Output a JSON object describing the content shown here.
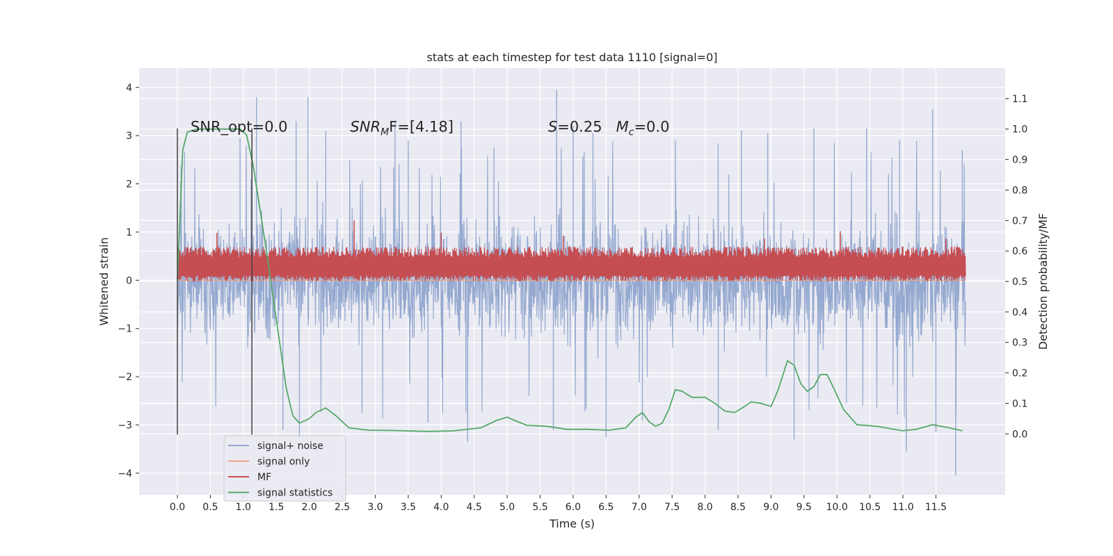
{
  "chart_data": {
    "type": "line",
    "title": "stats at each timestep for test data 1110 [signal=0]",
    "xlabel": "Time (s)",
    "ylabel": "Whitened strain",
    "y2label": "Detection probability/MF",
    "xlim": [
      -0.58,
      12.55
    ],
    "ylim": [
      -4.45,
      4.4
    ],
    "y2lim": [
      -0.2,
      1.2
    ],
    "x_ticks": [
      0.0,
      0.5,
      1.0,
      1.5,
      2.0,
      2.5,
      3.0,
      3.5,
      4.0,
      4.5,
      5.0,
      5.5,
      6.0,
      6.5,
      7.0,
      7.5,
      8.0,
      8.5,
      9.0,
      9.5,
      10.0,
      10.5,
      11.0,
      11.5
    ],
    "x_tick_labels": [
      "0.0",
      "0.5",
      "1.0",
      "1.5",
      "2.0",
      "2.5",
      "3.0",
      "3.5",
      "4.0",
      "4.5",
      "5.0",
      "5.5",
      "6.0",
      "6.5",
      "7.0",
      "7.5",
      "8.0",
      "8.5",
      "9.0",
      "9.5",
      "10.0",
      "10.5",
      "11.0",
      "11.5"
    ],
    "y_ticks": [
      -4,
      -3,
      -2,
      -1,
      0,
      1,
      2,
      3,
      4
    ],
    "y_tick_labels": [
      "−4",
      "−3",
      "−2",
      "−1",
      "0",
      "1",
      "2",
      "3",
      "4"
    ],
    "y2_ticks": [
      0.0,
      0.1,
      0.2,
      0.3,
      0.4,
      0.5,
      0.6,
      0.7,
      0.8,
      0.9,
      1.0,
      1.1
    ],
    "y2_tick_labels": [
      "0.0",
      "0.1",
      "0.2",
      "0.3",
      "0.4",
      "0.5",
      "0.6",
      "0.7",
      "0.8",
      "0.9",
      "1.0",
      "1.1"
    ],
    "grid": true,
    "legend_placement": "lower-left",
    "annotations": [
      {
        "text": "SNR_opt=0.0",
        "x": 0.2,
        "y": 3.2
      },
      {
        "text": "SNR",
        "sub": "M",
        "rest": "F=[4.18]",
        "italic": true,
        "x": 2.62,
        "y": 3.2
      },
      {
        "text": "S",
        "rest": "=0.25   ",
        "text2": "M",
        "sub2": "c",
        "rest2": "=0.0",
        "italic": true,
        "x": 5.62,
        "y": 3.2
      }
    ],
    "markers": [
      {
        "x": 0.0,
        "y": [
          -3.2,
          3.15
        ],
        "color": "#404040"
      },
      {
        "x": 1.13,
        "y": [
          -3.2,
          3.15
        ],
        "color": "#404040"
      }
    ],
    "series": [
      {
        "name": "signal+ noise",
        "color": "#95a9d0",
        "kind": "noise",
        "x_range": [
          0.0,
          11.95
        ],
        "typical_amplitude": 1.25,
        "peaks": [
          [
            0.05,
            2.05
          ],
          [
            0.95,
            2.95
          ],
          [
            1.2,
            3.8
          ],
          [
            1.6,
            -3.1
          ],
          [
            1.8,
            3.3
          ],
          [
            1.85,
            -3.25
          ],
          [
            1.98,
            3.8
          ],
          [
            2.25,
            3.1
          ],
          [
            3.5,
            2.9
          ],
          [
            3.3,
            3.3
          ],
          [
            4.3,
            3.3
          ],
          [
            4.4,
            -3.35
          ],
          [
            4.8,
            2.75
          ],
          [
            5.75,
            3.95
          ],
          [
            5.7,
            -3.1
          ],
          [
            6.5,
            -3.25
          ],
          [
            6.3,
            3.05
          ],
          [
            7.55,
            2.9
          ],
          [
            8.55,
            3.1
          ],
          [
            8.2,
            -3.1
          ],
          [
            9.35,
            -3.3
          ],
          [
            9.65,
            3.15
          ],
          [
            10.45,
            3.15
          ],
          [
            11.05,
            -3.55
          ],
          [
            11.45,
            3.55
          ],
          [
            11.5,
            -3.15
          ],
          [
            11.8,
            -4.05
          ],
          [
            11.9,
            2.7
          ],
          [
            7.05,
            -2.9
          ],
          [
            3.8,
            -2.95
          ],
          [
            6.0,
            3.2
          ],
          [
            10.95,
            2.9
          ],
          [
            2.8,
            -2.75
          ],
          [
            8.95,
            3.05
          ]
        ]
      },
      {
        "name": "signal only",
        "color": "#e9a68a",
        "kind": "flat",
        "x_range": [
          0.0,
          11.95
        ],
        "value": 0.0
      },
      {
        "name": "MF",
        "color": "#c44e52",
        "kind": "band",
        "x_range": [
          0.0,
          11.95
        ],
        "y2_range": [
          0.5,
          0.6
        ],
        "peaks": [
          [
            2.68,
            0.7
          ],
          [
            5.85,
            0.65
          ],
          [
            10.05,
            0.665
          ],
          [
            11.65,
            0.64
          ],
          [
            0.6,
            0.66
          ],
          [
            4.0,
            0.66
          ],
          [
            8.9,
            0.64
          ]
        ]
      },
      {
        "name": "signal statistics",
        "color": "#55a868",
        "kind": "line",
        "x": [
          0.0,
          0.08,
          0.15,
          0.3,
          0.5,
          0.8,
          0.95,
          1.05,
          1.15,
          1.25,
          1.35,
          1.45,
          1.55,
          1.65,
          1.75,
          1.85,
          2.0,
          2.1,
          2.25,
          2.4,
          2.6,
          2.9,
          3.3,
          3.8,
          4.2,
          4.6,
          4.85,
          5.0,
          5.1,
          5.3,
          5.6,
          5.9,
          6.2,
          6.55,
          6.8,
          6.95,
          7.05,
          7.15,
          7.25,
          7.35,
          7.45,
          7.55,
          7.65,
          7.8,
          8.0,
          8.15,
          8.3,
          8.45,
          8.6,
          8.7,
          8.85,
          9.0,
          9.1,
          9.25,
          9.35,
          9.45,
          9.55,
          9.65,
          9.75,
          9.85,
          9.95,
          10.1,
          10.3,
          10.6,
          11.0,
          11.2,
          11.45,
          11.7,
          11.9
        ],
        "y": [
          0.5,
          0.93,
          0.99,
          1.0,
          1.0,
          1.0,
          1.0,
          0.98,
          0.88,
          0.74,
          0.6,
          0.45,
          0.3,
          0.15,
          0.06,
          0.035,
          0.05,
          0.07,
          0.085,
          0.06,
          0.02,
          0.012,
          0.011,
          0.008,
          0.01,
          0.02,
          0.045,
          0.055,
          0.045,
          0.028,
          0.025,
          0.015,
          0.015,
          0.012,
          0.02,
          0.055,
          0.07,
          0.04,
          0.025,
          0.035,
          0.08,
          0.145,
          0.14,
          0.12,
          0.12,
          0.1,
          0.075,
          0.07,
          0.09,
          0.105,
          0.1,
          0.09,
          0.14,
          0.24,
          0.225,
          0.165,
          0.14,
          0.155,
          0.195,
          0.195,
          0.15,
          0.08,
          0.03,
          0.025,
          0.01,
          0.015,
          0.03,
          0.02,
          0.01
        ]
      }
    ]
  }
}
